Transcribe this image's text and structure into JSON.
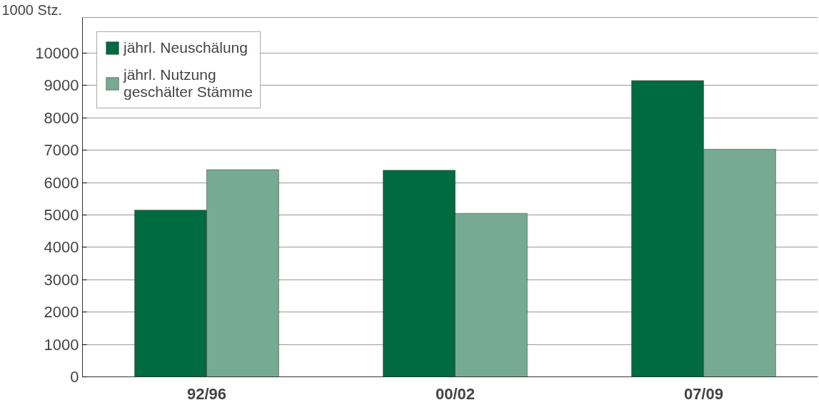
{
  "chart_data": {
    "type": "bar",
    "ylabel": "1000 Stz.",
    "categories": [
      "92/96",
      "00/02",
      "07/09"
    ],
    "series": [
      {
        "name": "jährl. Neuschälung",
        "color": "#006a40",
        "values": [
          5150,
          6380,
          9150
        ]
      },
      {
        "name": "jährl. Nutzung geschälter Stämme",
        "color": "#76aa92",
        "values": [
          6400,
          5050,
          7030
        ]
      }
    ],
    "ylim": [
      0,
      11100
    ],
    "yticks": [
      0,
      1000,
      2000,
      3000,
      4000,
      5000,
      6000,
      7000,
      8000,
      9000,
      10000
    ],
    "grid": "y",
    "legend": "top left"
  }
}
